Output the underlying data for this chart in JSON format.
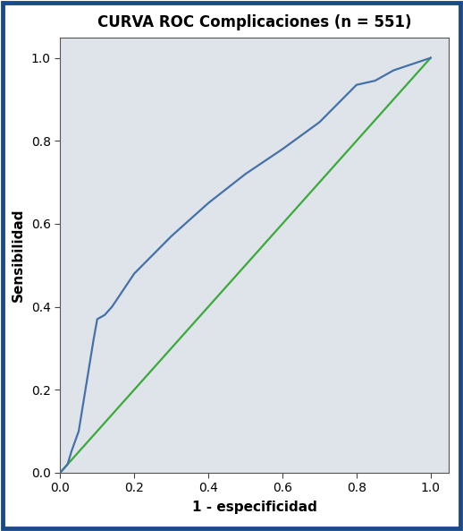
{
  "title": "CURVA ROC Complicaciones (n = 551)",
  "xlabel": "1 - especificidad",
  "ylabel": "Sensibilidad",
  "title_fontsize": 12,
  "axis_label_fontsize": 11,
  "tick_fontsize": 10,
  "xlim": [
    0.0,
    1.05
  ],
  "ylim": [
    0.0,
    1.05
  ],
  "xticks": [
    0.0,
    0.2,
    0.4,
    0.6,
    0.8,
    1.0
  ],
  "yticks": [
    0.0,
    0.2,
    0.4,
    0.6,
    0.8,
    1.0
  ],
  "roc_color": "#4472a8",
  "diag_color": "#3aaa3a",
  "roc_linewidth": 1.6,
  "diag_linewidth": 1.6,
  "bg_color": "#dfe3ea",
  "outer_bg": "#ffffff",
  "border_color": "#1a4a8a",
  "roc_x": [
    0.0,
    0.005,
    0.01,
    0.02,
    0.03,
    0.05,
    0.09,
    0.1,
    0.12,
    0.14,
    0.2,
    0.3,
    0.4,
    0.5,
    0.6,
    0.7,
    0.8,
    0.85,
    0.9,
    0.95,
    1.0
  ],
  "roc_y": [
    0.0,
    0.005,
    0.01,
    0.02,
    0.05,
    0.1,
    0.32,
    0.37,
    0.38,
    0.4,
    0.48,
    0.57,
    0.65,
    0.72,
    0.78,
    0.845,
    0.935,
    0.945,
    0.97,
    0.985,
    1.0
  ]
}
